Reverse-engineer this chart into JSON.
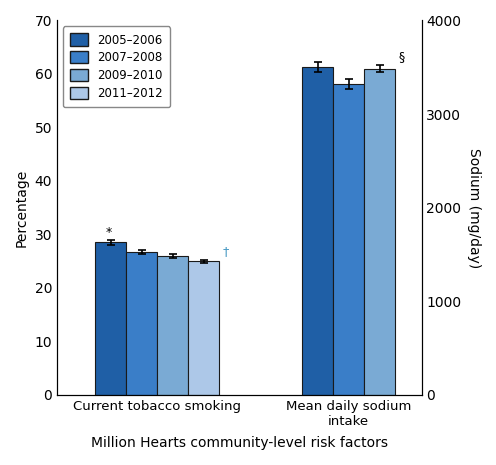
{
  "tobacco_values": [
    28.5,
    26.7,
    26.0,
    25.0
  ],
  "tobacco_errors": [
    0.4,
    0.3,
    0.35,
    0.3
  ],
  "sodium_values_pct": [
    61.25,
    58.1,
    61.0
  ],
  "sodium_errors_pct": [
    0.9,
    0.9,
    0.7
  ],
  "sodium_values_mgday": [
    3500,
    3320,
    3486
  ],
  "colors": [
    "#1f5fa6",
    "#3a7ec8",
    "#7aaad4",
    "#adc8e8"
  ],
  "bar_edge_color": "#1a1a1a",
  "legend_labels": [
    "2005–2006",
    "2007–2008",
    "2009–2010",
    "2011–2012"
  ],
  "ylabel_left": "Percentage",
  "ylabel_right": "Sodium (mg/day)",
  "xlabel": "Million Hearts community-level risk factors",
  "xtick_labels": [
    "Current tobacco smoking",
    "Mean daily sodium\nintake"
  ],
  "ylim_left": [
    0,
    70
  ],
  "ylim_right": [
    0,
    4000
  ],
  "yticks_left": [
    0,
    10,
    20,
    30,
    40,
    50,
    60,
    70
  ],
  "yticks_right": [
    0,
    1000,
    2000,
    3000,
    4000
  ],
  "annotation_tobacco_star": "*",
  "annotation_tobacco_dagger": "†",
  "annotation_sodium_section": "§"
}
